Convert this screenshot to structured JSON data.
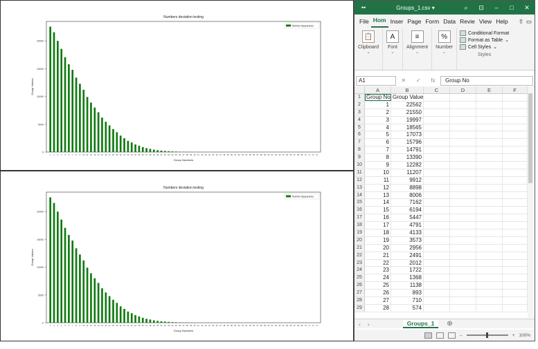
{
  "chart_data": [
    {
      "type": "bar",
      "title": "Numbers deviation testing",
      "xlabel": "Group Numbers",
      "ylabel": "Group Values",
      "legend": "Number Appearance",
      "legend_position": "top-right",
      "color": "#0f7a0f",
      "ylim": [
        0,
        23500
      ],
      "yticks": [
        0,
        5000,
        10000,
        15000,
        20000
      ],
      "categories": [
        "1",
        "2",
        "3",
        "4",
        "5",
        "6",
        "7",
        "8",
        "9",
        "10",
        "11",
        "12",
        "13",
        "14",
        "15",
        "16",
        "17",
        "18",
        "19",
        "20",
        "21",
        "22",
        "23",
        "24",
        "25",
        "26",
        "27",
        "28",
        "29",
        "30",
        "31",
        "32",
        "33",
        "34",
        "35",
        "36",
        "37",
        "38",
        "39",
        "40",
        "41",
        "42",
        "43",
        "44",
        "45",
        "46",
        "47",
        "48",
        "49",
        "50",
        "51",
        "52",
        "53",
        "54",
        "55",
        "56",
        "57",
        "58",
        "59",
        "60",
        "61",
        "62",
        "63",
        "64",
        "65",
        "66",
        "67",
        "68",
        "69",
        "70",
        "71",
        "72",
        "73"
      ],
      "values": [
        22562,
        21550,
        19997,
        18565,
        17073,
        15796,
        14791,
        13390,
        12282,
        11207,
        9912,
        8898,
        8006,
        7162,
        6194,
        5447,
        4791,
        4133,
        3573,
        2956,
        2491,
        2012,
        1722,
        1368,
        1138,
        893,
        710,
        574,
        440,
        340,
        260,
        195,
        150,
        110,
        85,
        62,
        45,
        33,
        24,
        17,
        12,
        9,
        6,
        4,
        3,
        2,
        2,
        1,
        1,
        1,
        0,
        0,
        0,
        0,
        0,
        0,
        0,
        0,
        0,
        0,
        0,
        0,
        0,
        0,
        0,
        0,
        0,
        0,
        0,
        0,
        0,
        0,
        0
      ]
    },
    {
      "type": "bar",
      "title": "Numbers deviation testing",
      "xlabel": "Group Numbers",
      "ylabel": "Group Values",
      "legend": "Number Appearance",
      "legend_position": "top-right",
      "color": "#0f7a0f",
      "ylim": [
        0,
        23500
      ],
      "yticks": [
        0,
        5000,
        10000,
        15000,
        20000
      ],
      "categories": [
        "1",
        "2",
        "3",
        "4",
        "5",
        "6",
        "7",
        "8",
        "9",
        "10",
        "11",
        "12",
        "13",
        "14",
        "15",
        "16",
        "17",
        "18",
        "19",
        "20",
        "21",
        "22",
        "23",
        "24",
        "25",
        "26",
        "27",
        "28",
        "29",
        "30",
        "31",
        "32",
        "33",
        "34",
        "35",
        "36",
        "37",
        "38",
        "39",
        "40",
        "41",
        "42",
        "43",
        "44",
        "45",
        "46",
        "47",
        "48",
        "49",
        "50",
        "51",
        "52",
        "53",
        "54",
        "55",
        "56",
        "57",
        "58",
        "59",
        "60",
        "61",
        "62",
        "63",
        "64",
        "65",
        "66",
        "67",
        "68",
        "69",
        "70",
        "71",
        "72",
        "73"
      ],
      "values": [
        22562,
        21550,
        19997,
        18565,
        17073,
        15796,
        14791,
        13390,
        12282,
        11207,
        9912,
        8898,
        8006,
        7162,
        6194,
        5447,
        4791,
        4133,
        3573,
        2956,
        2491,
        2012,
        1722,
        1368,
        1138,
        893,
        710,
        574,
        440,
        340,
        260,
        195,
        150,
        110,
        85,
        62,
        45,
        33,
        24,
        17,
        12,
        9,
        6,
        4,
        3,
        2,
        2,
        1,
        1,
        1,
        0,
        0,
        0,
        0,
        0,
        0,
        0,
        0,
        0,
        0,
        0,
        0,
        0,
        0,
        0,
        0,
        0,
        0,
        0,
        0,
        0,
        0,
        0
      ]
    }
  ],
  "excel": {
    "accent_color": "#217346",
    "titlebar": {
      "app_icon": "excel-autosave-icon",
      "title": "Groups_1.csv",
      "title_caret": "▾",
      "search_icon": "⌕",
      "ribbon_display_icon": "⊡",
      "minimize": "–",
      "maximize": "□",
      "close": "✕"
    },
    "menu": {
      "items": [
        "File",
        "Hom",
        "Inser",
        "Page",
        "Form",
        "Data",
        "Revie",
        "View",
        "Help"
      ],
      "active_index": 1
    },
    "ribbon": {
      "clipboard": "Clipboard",
      "font": "Font",
      "alignment": "Alignment",
      "number": "Number",
      "conditional_formatting": "Conditional Format",
      "format_as_table": "Format as Table",
      "cell_styles": "Cell Styles",
      "styles": "Styles"
    },
    "formula_bar": {
      "name_box": "A1",
      "cancel": "✕",
      "enter": "✓",
      "fx": "fx",
      "formula": "Group No"
    },
    "columns": [
      "A",
      "B",
      "C",
      "D",
      "E",
      "F"
    ],
    "header_row": [
      "Group No",
      "Group Value"
    ],
    "rows": [
      [
        "1",
        "22562"
      ],
      [
        "2",
        "21550"
      ],
      [
        "3",
        "19997"
      ],
      [
        "4",
        "18565"
      ],
      [
        "5",
        "17073"
      ],
      [
        "6",
        "15796"
      ],
      [
        "7",
        "14791"
      ],
      [
        "8",
        "13390"
      ],
      [
        "9",
        "12282"
      ],
      [
        "10",
        "11207"
      ],
      [
        "11",
        "9912"
      ],
      [
        "12",
        "8898"
      ],
      [
        "13",
        "8006"
      ],
      [
        "14",
        "7162"
      ],
      [
        "15",
        "6194"
      ],
      [
        "16",
        "5447"
      ],
      [
        "17",
        "4791"
      ],
      [
        "18",
        "4133"
      ],
      [
        "19",
        "3573"
      ],
      [
        "20",
        "2956"
      ],
      [
        "21",
        "2491"
      ],
      [
        "22",
        "2012"
      ],
      [
        "23",
        "1722"
      ],
      [
        "24",
        "1368"
      ],
      [
        "25",
        "1138"
      ],
      [
        "26",
        "893"
      ],
      [
        "27",
        "710"
      ],
      [
        "28",
        "574"
      ]
    ],
    "sheet_tab": "Groups_1",
    "add_sheet": "⊕",
    "zoom": "100%",
    "zoom_minus": "–",
    "zoom_plus": "+"
  }
}
